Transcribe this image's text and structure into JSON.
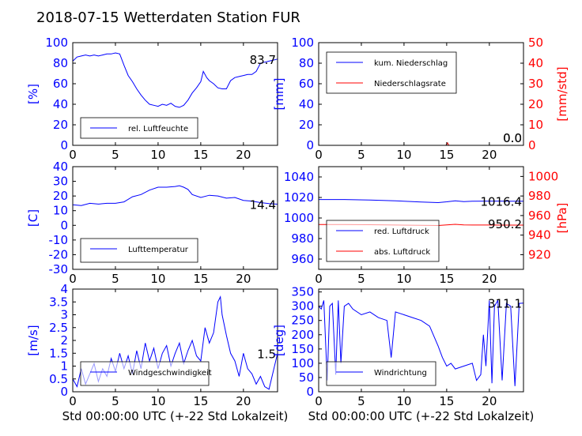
{
  "title": "2018-07-15 Wetterdaten Station FUR ",
  "colors": {
    "left_axis": "#0000ff",
    "right_axis": "#ff0000",
    "series_a": "#0000ff",
    "series_b": "#ff0000",
    "frame": "#000000"
  },
  "chart_data": [
    {
      "type": "line",
      "panel": "top-left",
      "ylabel": "[%]",
      "xlim": [
        0,
        24
      ],
      "ylim": [
        0,
        100
      ],
      "xticks": [
        0,
        5,
        10,
        15,
        20
      ],
      "yticks": [
        0,
        20,
        40,
        60,
        80,
        100
      ],
      "grid": false,
      "legend_position": "lower-left",
      "series": [
        {
          "name": "rel. Luftfeuchte",
          "color": "#0000ff",
          "x": [
            0,
            0.5,
            1,
            1.5,
            2,
            2.5,
            3,
            3.5,
            4,
            4.5,
            5,
            5.5,
            6,
            6.5,
            7,
            7.5,
            8,
            8.5,
            9,
            9.5,
            10,
            10.5,
            11,
            11.5,
            12,
            12.5,
            13,
            13.5,
            14,
            14.5,
            15,
            15.3,
            15.7,
            16,
            16.5,
            17,
            17.5,
            18,
            18.5,
            19,
            19.5,
            20,
            20.5,
            21,
            21.5,
            22,
            22.5,
            23,
            23.5,
            24
          ],
          "y": [
            82,
            86,
            87,
            88,
            87,
            88,
            87,
            88,
            89,
            89,
            90,
            89,
            78,
            68,
            62,
            55,
            49,
            44,
            40,
            39,
            38,
            40,
            39,
            41,
            38,
            37,
            39,
            44,
            51,
            56,
            62,
            72,
            66,
            63,
            60,
            56,
            55,
            55,
            63,
            66,
            67,
            68,
            69,
            69,
            72,
            80,
            81,
            82,
            83,
            84
          ]
        }
      ],
      "annotation": "83.7"
    },
    {
      "type": "line",
      "panel": "top-right",
      "ylabel": "[mm]",
      "ylabel_right": "[mm/std]",
      "xlim": [
        0,
        24
      ],
      "ylim": [
        0,
        100
      ],
      "ylim_right": [
        0,
        50
      ],
      "xticks": [
        0,
        5,
        10,
        15,
        20
      ],
      "yticks": [
        0,
        20,
        40,
        60,
        80,
        100
      ],
      "yticks_right": [
        0,
        10,
        20,
        30,
        40,
        50
      ],
      "grid": false,
      "legend_position": "upper-left",
      "series": [
        {
          "name": "kum. Niederschlag",
          "color": "#0000ff",
          "axis": "left",
          "x": [
            0,
            5,
            10,
            15,
            20,
            24
          ],
          "y": [
            0,
            0,
            0,
            0,
            0,
            0
          ]
        },
        {
          "name": "Niederschlagsrate",
          "color": "#ff0000",
          "axis": "right",
          "x": [
            0,
            14.9,
            15,
            15.1,
            15.2,
            15.3,
            24
          ],
          "y": [
            0,
            0,
            0.6,
            1.2,
            0.4,
            0,
            0
          ]
        }
      ],
      "annotation": "0.0",
      "annotation_right": "0.0"
    },
    {
      "type": "line",
      "panel": "middle-left",
      "ylabel": "[C]",
      "xlim": [
        0,
        24
      ],
      "ylim": [
        -30,
        40
      ],
      "xticks": [
        0,
        5,
        10,
        15,
        20
      ],
      "yticks": [
        -30,
        -20,
        -10,
        0,
        10,
        20,
        30,
        40
      ],
      "grid": false,
      "legend_position": "lower-left",
      "series": [
        {
          "name": "Lufttemperatur",
          "color": "#0000ff",
          "x": [
            0,
            1,
            2,
            3,
            4,
            5,
            6,
            7,
            8,
            9,
            10,
            11,
            12,
            12.5,
            13,
            13.5,
            14,
            15,
            16,
            17,
            18,
            19,
            20,
            21,
            22,
            23,
            24
          ],
          "y": [
            14,
            13.5,
            15,
            14.5,
            15,
            15,
            16,
            19.5,
            21,
            24,
            26,
            26,
            26.5,
            27,
            26,
            24.5,
            21,
            19,
            20.5,
            20,
            18.5,
            19,
            17,
            16.5,
            15.5,
            14.8,
            14.4
          ]
        }
      ],
      "annotation": "14.4"
    },
    {
      "type": "line",
      "panel": "middle-right",
      "ylabel_right": "[hPa]",
      "xlim": [
        0,
        24
      ],
      "ylim": [
        950,
        1050
      ],
      "ylim_right": [
        905,
        1010
      ],
      "xticks": [
        0,
        5,
        10,
        15,
        20
      ],
      "yticks": [
        960,
        980,
        1000,
        1020,
        1040
      ],
      "yticks_right": [
        920,
        940,
        960,
        980,
        1000
      ],
      "grid": false,
      "legend_position": "lower-left",
      "series": [
        {
          "name": "red. Luftdruck",
          "color": "#0000ff",
          "axis": "left",
          "x": [
            0,
            3,
            6,
            9,
            12,
            14,
            15,
            16,
            17,
            18,
            20,
            22,
            24
          ],
          "y": [
            1018,
            1018,
            1017.5,
            1016.8,
            1015.5,
            1015,
            1015.8,
            1016.8,
            1016,
            1016.3,
            1016.5,
            1016.4,
            1016.4
          ]
        },
        {
          "name": "abs. Luftdruck",
          "color": "#ff0000",
          "axis": "right",
          "x": [
            0,
            3,
            6,
            9,
            12,
            14,
            15,
            16,
            17,
            18,
            20,
            22,
            24
          ],
          "y": [
            950.8,
            950.8,
            950.6,
            950.3,
            950,
            949.8,
            950.5,
            951,
            950.4,
            950.3,
            950.3,
            950.2,
            950.2
          ]
        }
      ],
      "annotation": "1016.4",
      "annotation_right": "950.2"
    },
    {
      "type": "line",
      "panel": "bottom-left",
      "ylabel": "[m/s]",
      "xlabel": "Std 00:00:00 UTC (+-22 Std Lokalzeit)",
      "xlim": [
        0,
        24
      ],
      "ylim": [
        0,
        4
      ],
      "xticks": [
        0,
        5,
        10,
        15,
        20
      ],
      "yticks": [
        0.0,
        0.5,
        1.0,
        1.5,
        2.0,
        2.5,
        3.0,
        3.5,
        4.0
      ],
      "grid": false,
      "legend_position": "lower-left",
      "series": [
        {
          "name": "Windgeschwindigkeit",
          "color": "#0000ff",
          "x": [
            0,
            0.5,
            1,
            1.5,
            2,
            2.5,
            3,
            3.5,
            4,
            4.5,
            5,
            5.5,
            6,
            6.5,
            7,
            7.5,
            8,
            8.5,
            9,
            9.5,
            10,
            10.5,
            11,
            11.5,
            12,
            12.5,
            13,
            13.5,
            14,
            14.5,
            15,
            15.5,
            16,
            16.5,
            17,
            17.3,
            17.5,
            18,
            18.5,
            19,
            19.5,
            20,
            20.5,
            21,
            21.5,
            22,
            22.5,
            23,
            23.5,
            24
          ],
          "y": [
            0.5,
            0.2,
            0.9,
            0.3,
            0.7,
            1.1,
            0.4,
            0.9,
            0.6,
            1.3,
            0.8,
            1.5,
            0.9,
            1.4,
            0.7,
            1.6,
            0.9,
            1.9,
            1.2,
            1.7,
            0.9,
            1.5,
            1.8,
            1.0,
            1.5,
            1.9,
            1.1,
            1.6,
            2.0,
            1.4,
            1.2,
            2.5,
            1.9,
            2.3,
            3.5,
            3.7,
            3.0,
            2.2,
            1.5,
            1.2,
            0.6,
            1.5,
            0.9,
            0.7,
            0.3,
            0.6,
            0.2,
            0.1,
            0.8,
            1.5
          ]
        }
      ],
      "annotation": "1.5"
    },
    {
      "type": "line",
      "panel": "bottom-right",
      "ylabel": "[deg]",
      "xlabel": "Std 00:00:00 UTC (+-22 Std Lokalzeit)",
      "xlim": [
        0,
        24
      ],
      "ylim": [
        0,
        360
      ],
      "xticks": [
        0,
        5,
        10,
        15,
        20
      ],
      "yticks": [
        0,
        50,
        100,
        150,
        200,
        250,
        300,
        350
      ],
      "grid": false,
      "legend_position": "lower-left",
      "series": [
        {
          "name": "Windrichtung",
          "color": "#0000ff",
          "x": [
            0,
            0.3,
            0.6,
            1,
            1.3,
            1.6,
            2,
            2.3,
            2.6,
            3,
            3.5,
            4,
            5,
            6,
            7,
            8,
            8.5,
            9,
            10,
            11,
            12,
            13,
            14,
            14.5,
            15,
            15.5,
            16,
            17,
            18,
            18.5,
            19,
            19.3,
            19.6,
            20,
            20.3,
            20.6,
            21,
            21.5,
            22,
            22.5,
            23,
            23.5,
            24
          ],
          "y": [
            300,
            290,
            320,
            40,
            300,
            310,
            60,
            320,
            100,
            300,
            310,
            290,
            270,
            280,
            260,
            250,
            120,
            280,
            270,
            260,
            250,
            230,
            160,
            120,
            90,
            100,
            80,
            90,
            100,
            40,
            60,
            200,
            90,
            320,
            30,
            300,
            320,
            40,
            310,
            300,
            20,
            310,
            311
          ]
        }
      ],
      "annotation": "311.1"
    }
  ]
}
